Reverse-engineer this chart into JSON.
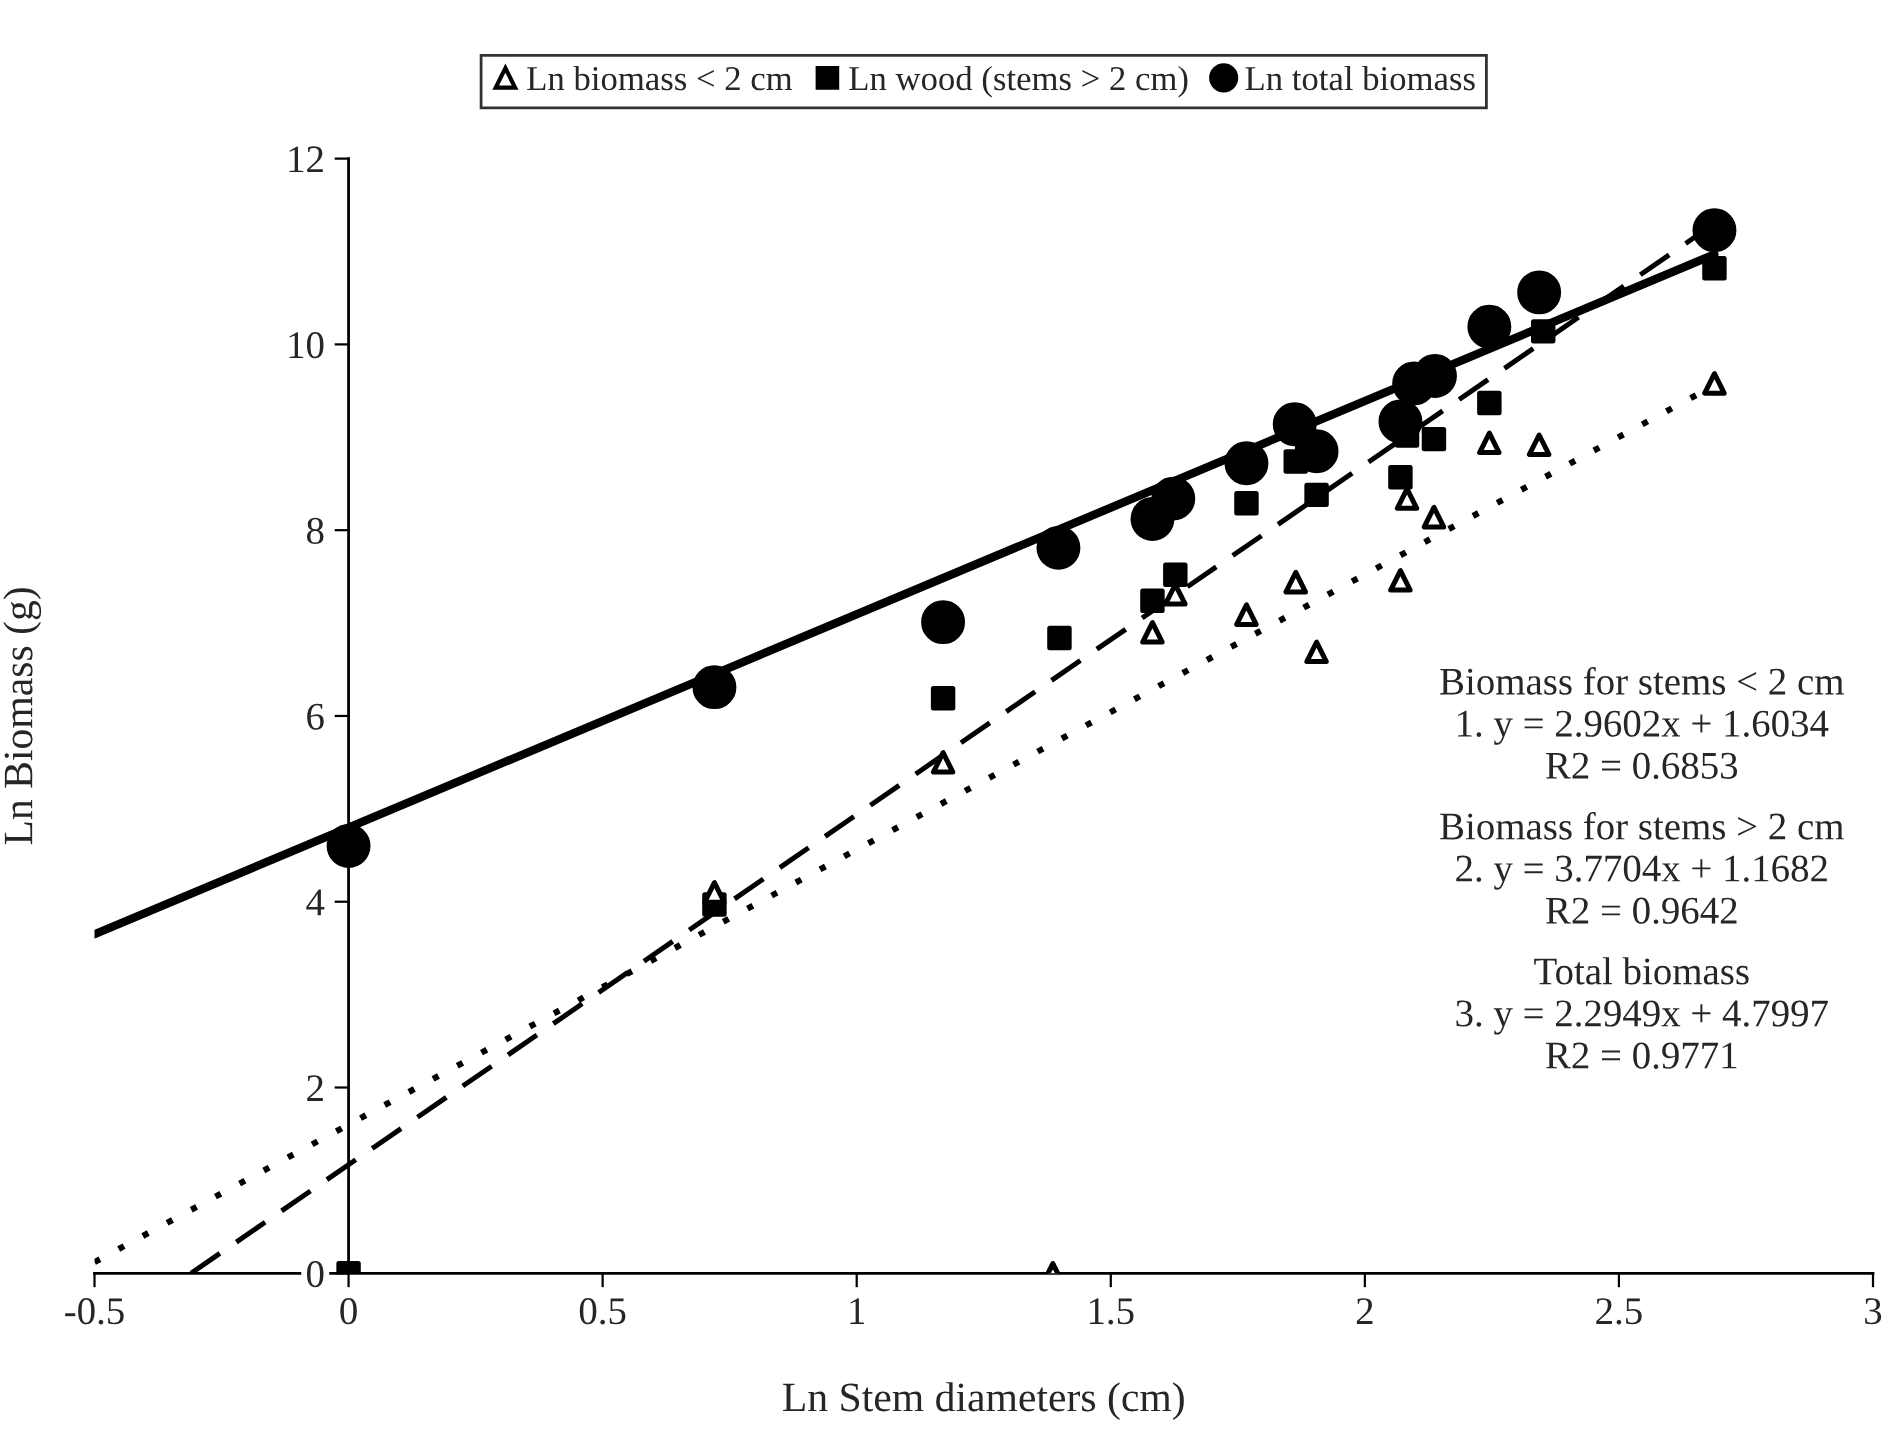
{
  "chart_data": {
    "type": "scatter",
    "xlabel": "Ln Stem diameters (cm)",
    "ylabel": "Ln Biomass (g)",
    "xlim": [
      -0.5,
      3
    ],
    "xticks": [
      -0.5,
      0,
      0.5,
      1,
      1.5,
      2,
      2.5,
      3
    ],
    "ylim": [
      0,
      12
    ],
    "yticks": [
      0,
      2,
      4,
      6,
      8,
      10,
      12
    ],
    "grid": false,
    "legend": "top",
    "series": [
      {
        "name": "Ln biomass < 2 cm",
        "color": "#000000",
        "marker": "triangle",
        "x": [
          0.72,
          1.17,
          1.386,
          1.582,
          1.627,
          1.767,
          1.864,
          1.905,
          2.07,
          2.083,
          2.136,
          2.245,
          2.343,
          2.688
        ],
        "values": [
          4.1,
          5.5,
          0,
          6.9,
          7.31,
          7.09,
          7.44,
          6.69,
          7.46,
          8.34,
          8.14,
          8.94,
          8.92,
          9.58
        ]
      },
      {
        "name": "Ln wood (stems > 2 cm)",
        "color": "#000000",
        "marker": "square",
        "x": [
          0,
          0.72,
          1.17,
          1.399,
          1.582,
          1.627,
          1.767,
          1.864,
          1.905,
          2.07,
          2.083,
          2.136,
          2.245,
          2.351,
          2.688
        ],
        "values": [
          0,
          3.97,
          6.19,
          6.84,
          7.24,
          7.52,
          8.29,
          8.74,
          8.38,
          8.57,
          9.02,
          8.98,
          9.37,
          10.14,
          10.82
        ]
      },
      {
        "name": "Ln total biomass",
        "color": "#000000",
        "marker": "circle",
        "x": [
          0,
          0.72,
          1.17,
          1.397,
          1.582,
          1.623,
          1.767,
          1.862,
          1.905,
          2.07,
          2.097,
          2.138,
          2.245,
          2.343,
          2.688
        ],
        "values": [
          4.6,
          6.31,
          7.01,
          7.81,
          8.12,
          8.34,
          8.72,
          9.14,
          8.85,
          9.17,
          9.58,
          9.66,
          10.19,
          10.56,
          11.23
        ]
      },
      {
        "type": "line",
        "color": "#000000",
        "line_style": "dotted",
        "marker": "none",
        "x": [
          -0.5,
          2.688
        ],
        "values": [
          0.12,
          9.56
        ]
      },
      {
        "type": "line",
        "color": "#000000",
        "line_style": "dashed",
        "marker": "none",
        "x": [
          -0.31,
          2.688
        ],
        "values": [
          0,
          11.3
        ]
      },
      {
        "type": "line",
        "color": "#000000",
        "line_style": "solid",
        "marker": "none",
        "x": [
          -0.5,
          2.688
        ],
        "values": [
          3.65,
          10.97
        ]
      }
    ],
    "annotations": [
      "Biomass for stems < 2 cm\n1. y = 2.9602x + 1.6034\nR2 = 0.6853",
      "Biomass for stems > 2 cm\n2. y = 3.7704x + 1.1682\nR2 = 0.9642",
      "Total biomass\n3. y = 2.2949x + 4.7997\nR2 = 0.9771"
    ]
  }
}
